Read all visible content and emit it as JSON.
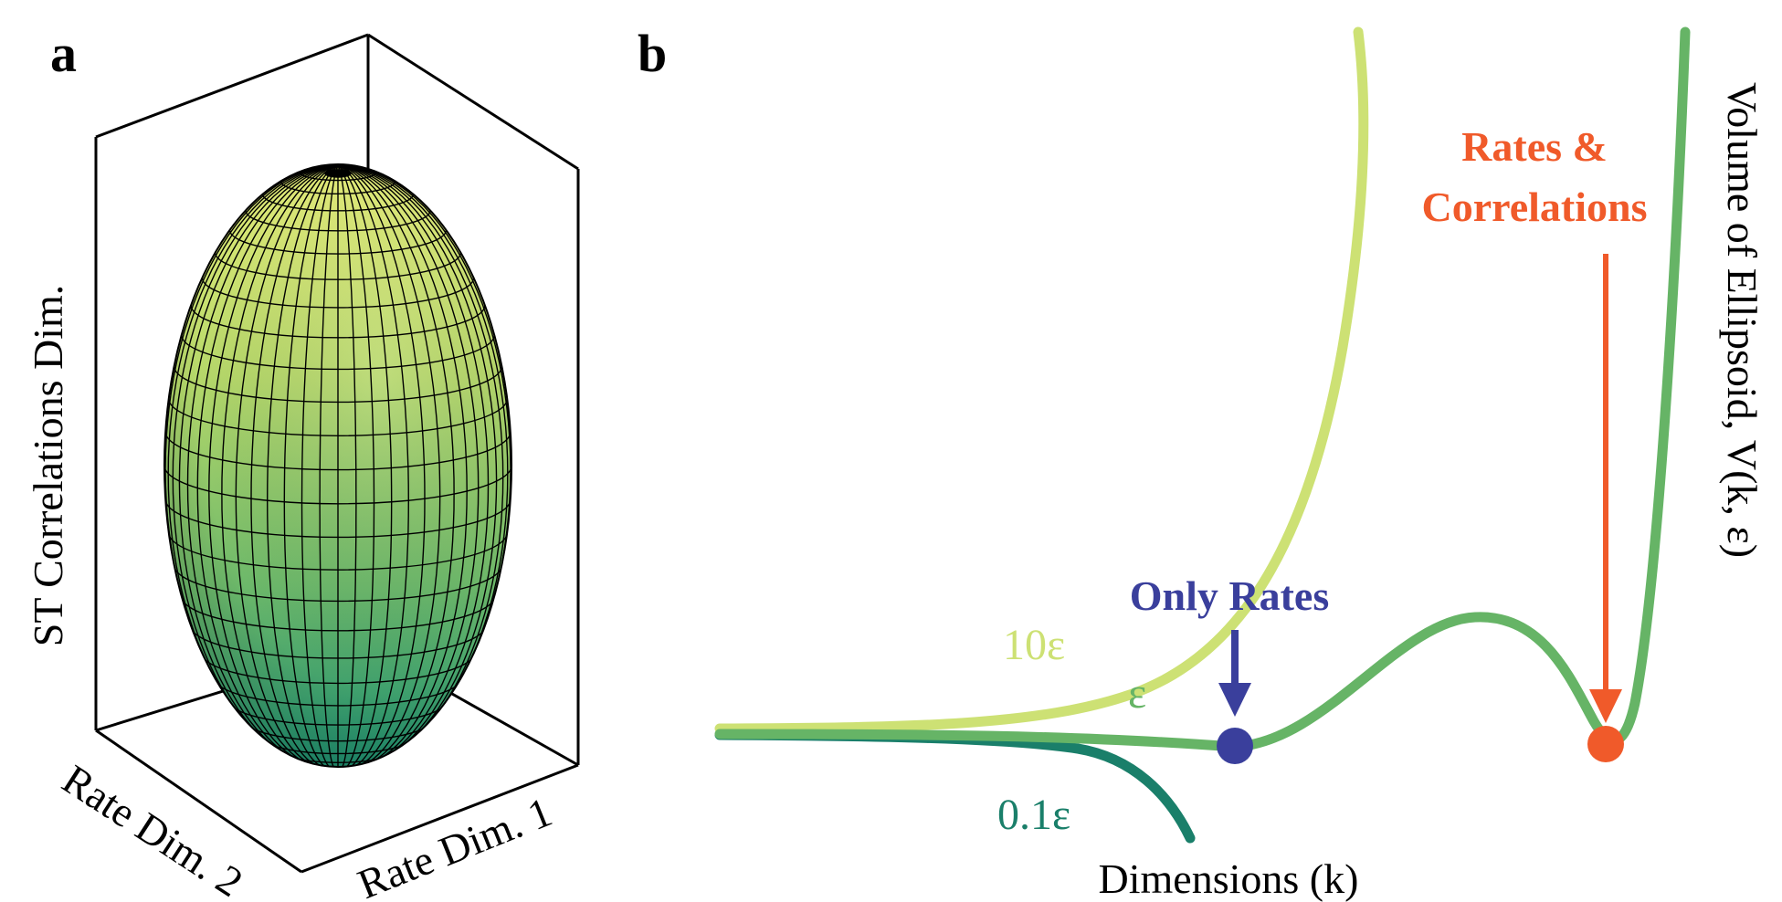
{
  "panel_a": {
    "letter": "a",
    "z_axis_label": "ST Correlations Dim.",
    "x_axis_label": "Rate Dim. 2",
    "y_axis_label": "Rate Dim. 1",
    "surface_colors": {
      "top": "#e6ee7a",
      "bottom": "#1f8f6f",
      "mesh": "#000000"
    }
  },
  "panel_b": {
    "letter": "b",
    "x_axis_label": "Dimensions (k)",
    "y_axis_label": "Volume of Ellipsoid, V(k, ε)",
    "curves": [
      {
        "label": "10ε",
        "color": "#cde174"
      },
      {
        "label": "ε",
        "color": "#66b466"
      },
      {
        "label": "0.1ε",
        "color": "#1a7f6a"
      }
    ],
    "markers": [
      {
        "label": "Only Rates",
        "color": "#3a3f9c"
      },
      {
        "label_line1": "Rates &",
        "label_line2": "Correlations",
        "color": "#f05a2a"
      }
    ]
  }
}
